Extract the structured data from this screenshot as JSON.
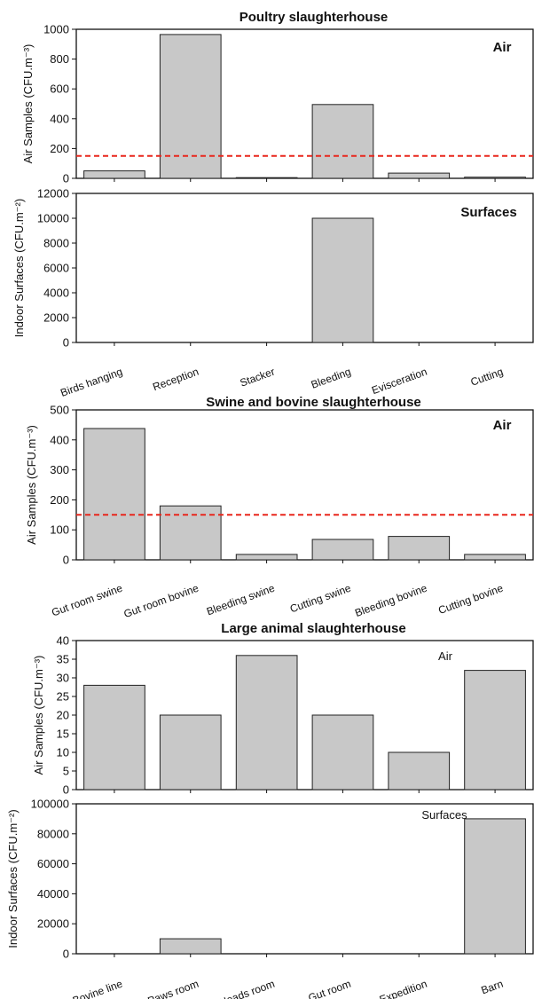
{
  "colors": {
    "bar_fill": "#c8c8c8",
    "bar_stroke": "#222222",
    "threshold": "#e8261c"
  },
  "chart_data": [
    {
      "type": "bar",
      "title": "Poultry slaughterhouse",
      "panel_label": "Air",
      "ylabel": "Air Samples (CFU.m⁻³)",
      "categories": [
        "Birds hanging",
        "Reception",
        "Stacker",
        "Bleeding",
        "Evisceration",
        "Cutting"
      ],
      "values": [
        50,
        965,
        5,
        495,
        35,
        8
      ],
      "ylim": [
        0,
        1000
      ],
      "yticks": [
        0,
        200,
        400,
        600,
        800,
        1000
      ],
      "threshold": 150,
      "show_categories": false
    },
    {
      "type": "bar",
      "title": "",
      "panel_label": "Surfaces",
      "ylabel": "Indoor Surfaces (CFU.m⁻²)",
      "categories": [
        "Birds hanging",
        "Reception",
        "Stacker",
        "Bleeding",
        "Evisceration",
        "Cutting"
      ],
      "values": [
        0,
        0,
        0,
        10000,
        0,
        0
      ],
      "ylim": [
        0,
        12000
      ],
      "yticks": [
        0,
        2000,
        4000,
        6000,
        8000,
        10000,
        12000
      ],
      "show_categories": true
    },
    {
      "type": "bar",
      "title": "Swine and bovine slaughterhouse",
      "panel_label": "Air",
      "ylabel": "Air Samples (CFU.m⁻³)",
      "categories": [
        "Gut room swine",
        "Gut room bovine",
        "Bleeding swine",
        "Cutting swine",
        "Bleeding bovine",
        "Cutting bovine"
      ],
      "values": [
        438,
        180,
        18,
        68,
        78,
        18
      ],
      "ylim": [
        0,
        500
      ],
      "yticks": [
        0,
        100,
        200,
        300,
        400,
        500
      ],
      "threshold": 150,
      "show_categories": true
    },
    {
      "type": "bar",
      "title": "Large animal slaughterhouse",
      "panel_label": "Air",
      "ylabel": "Air Samples (CFU.m⁻³)",
      "categories": [
        "Bovine line",
        "Paws room",
        "Heads room",
        "Gut room",
        "Expedition",
        "Barn"
      ],
      "values": [
        28,
        20,
        36,
        20,
        10,
        32
      ],
      "ylim": [
        0,
        40
      ],
      "yticks": [
        0,
        5,
        10,
        15,
        20,
        25,
        30,
        35,
        40
      ],
      "show_categories": false
    },
    {
      "type": "bar",
      "title": "",
      "panel_label": "Surfaces",
      "ylabel": "Indoor Surfaces (CFU.m⁻²)",
      "categories": [
        "Bovine line",
        "Paws room",
        "Heads room",
        "Gut room",
        "Expedition",
        "Barn"
      ],
      "values": [
        0,
        10000,
        0,
        0,
        0,
        90000
      ],
      "ylim": [
        0,
        100000
      ],
      "yticks": [
        0,
        20000,
        40000,
        60000,
        80000,
        100000
      ],
      "show_categories": true
    }
  ]
}
